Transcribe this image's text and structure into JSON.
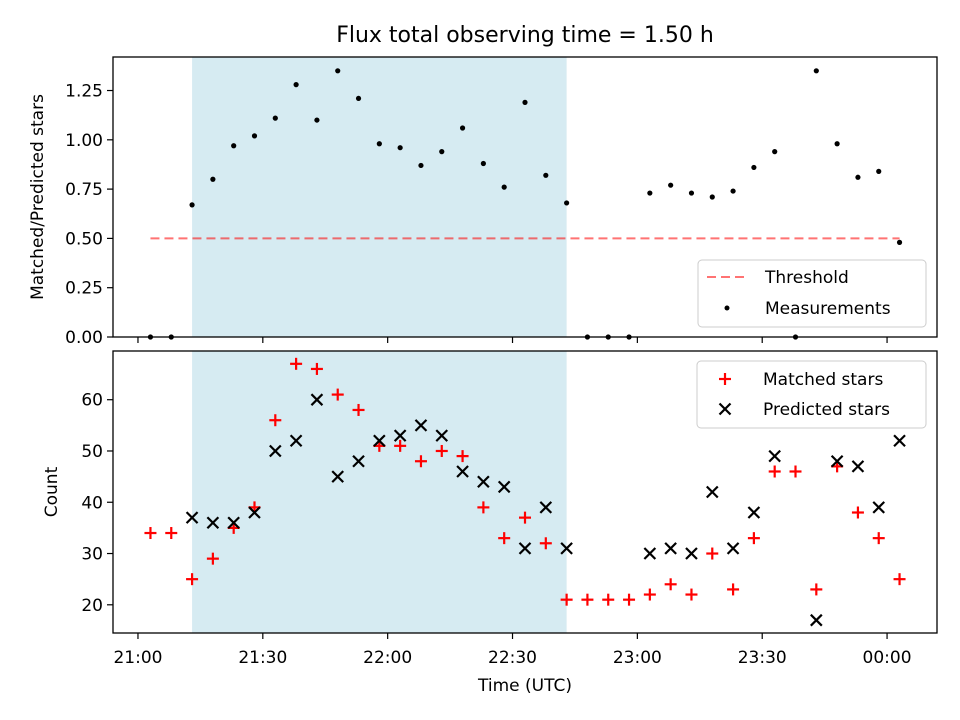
{
  "figure": {
    "title": "Flux total observing time = 1.50 h"
  },
  "colors": {
    "shade": "#add8e6",
    "threshold": "#ff0000",
    "measurement": "#000000",
    "matched": "#ff0000",
    "predicted": "#000000"
  },
  "chart_data": [
    {
      "type": "scatter",
      "title": "Flux total observing time = 1.50 h",
      "xlabel": "",
      "ylabel": "Matched/Predicted stars",
      "xlim": [
        "20:54",
        "00:12"
      ],
      "ylim": [
        0,
        1.42
      ],
      "yticks": [
        "0.00",
        "0.25",
        "0.50",
        "0.75",
        "1.00",
        "1.25"
      ],
      "ytick_values": [
        0,
        0.25,
        0.5,
        0.75,
        1.0,
        1.25
      ],
      "shaded_span": [
        "21:13",
        "22:43"
      ],
      "legend_position": "lower right",
      "threshold": {
        "name": "Threshold",
        "value": 0.5,
        "x_range": [
          "21:03",
          "00:03"
        ],
        "style": "dashed"
      },
      "series": [
        {
          "name": "Measurements",
          "marker": "dot",
          "x": [
            "21:03",
            "21:08",
            "21:13",
            "21:18",
            "21:23",
            "21:28",
            "21:33",
            "21:38",
            "21:43",
            "21:48",
            "21:53",
            "21:58",
            "22:03",
            "22:08",
            "22:13",
            "22:18",
            "22:23",
            "22:28",
            "22:33",
            "22:38",
            "22:43",
            "22:48",
            "22:53",
            "22:58",
            "23:03",
            "23:08",
            "23:13",
            "23:18",
            "23:23",
            "23:28",
            "23:33",
            "23:38",
            "23:43",
            "23:48",
            "23:53",
            "23:58",
            "00:03"
          ],
          "y": [
            0.0,
            0.0,
            0.67,
            0.8,
            0.97,
            1.02,
            1.11,
            1.28,
            1.1,
            1.35,
            1.21,
            0.98,
            0.96,
            0.87,
            0.94,
            1.06,
            0.88,
            0.76,
            1.19,
            0.82,
            0.68,
            0.0,
            0.0,
            0.0,
            0.73,
            0.77,
            0.73,
            0.71,
            0.74,
            0.86,
            0.94,
            0.0,
            1.35,
            0.98,
            0.81,
            0.84,
            0.48
          ]
        }
      ]
    },
    {
      "type": "scatter",
      "title": "",
      "xlabel": "Time (UTC)",
      "ylabel": "Count",
      "xlim": [
        "20:54",
        "00:12"
      ],
      "ylim": [
        14.5,
        69.5
      ],
      "yticks": [
        "20",
        "30",
        "40",
        "50",
        "60"
      ],
      "ytick_values": [
        20,
        30,
        40,
        50,
        60
      ],
      "xticks": [
        "21:00",
        "21:30",
        "22:00",
        "22:30",
        "23:00",
        "23:30",
        "00:00"
      ],
      "shaded_span": [
        "21:13",
        "22:43"
      ],
      "legend_position": "upper right",
      "series": [
        {
          "name": "Matched stars",
          "marker": "plus",
          "x": [
            "21:03",
            "21:08",
            "21:13",
            "21:18",
            "21:23",
            "21:28",
            "21:33",
            "21:38",
            "21:43",
            "21:48",
            "21:53",
            "21:58",
            "22:03",
            "22:08",
            "22:13",
            "22:18",
            "22:23",
            "22:28",
            "22:33",
            "22:38",
            "22:43",
            "22:48",
            "22:53",
            "22:58",
            "23:03",
            "23:08",
            "23:13",
            "23:18",
            "23:23",
            "23:28",
            "23:33",
            "23:38",
            "23:43",
            "23:48",
            "23:53",
            "23:58",
            "00:03"
          ],
          "y": [
            34,
            34,
            25,
            29,
            35,
            39,
            56,
            67,
            66,
            61,
            58,
            51,
            51,
            48,
            50,
            49,
            39,
            33,
            37,
            32,
            21,
            21,
            21,
            21,
            22,
            24,
            22,
            30,
            23,
            33,
            46,
            46,
            23,
            47,
            38,
            33,
            25
          ]
        },
        {
          "name": "Predicted stars",
          "marker": "x",
          "x": [
            "21:13",
            "21:18",
            "21:23",
            "21:28",
            "21:33",
            "21:38",
            "21:43",
            "21:48",
            "21:53",
            "21:58",
            "22:03",
            "22:08",
            "22:13",
            "22:18",
            "22:23",
            "22:28",
            "22:33",
            "22:38",
            "22:43",
            "23:03",
            "23:08",
            "23:13",
            "23:18",
            "23:23",
            "23:28",
            "23:33",
            "23:43",
            "23:48",
            "23:53",
            "23:58",
            "00:03"
          ],
          "y": [
            37,
            36,
            36,
            38,
            50,
            52,
            60,
            45,
            48,
            52,
            53,
            55,
            53,
            46,
            44,
            43,
            31,
            39,
            31,
            30,
            31,
            30,
            42,
            31,
            38,
            49,
            17,
            48,
            47,
            39,
            52
          ]
        }
      ]
    }
  ]
}
